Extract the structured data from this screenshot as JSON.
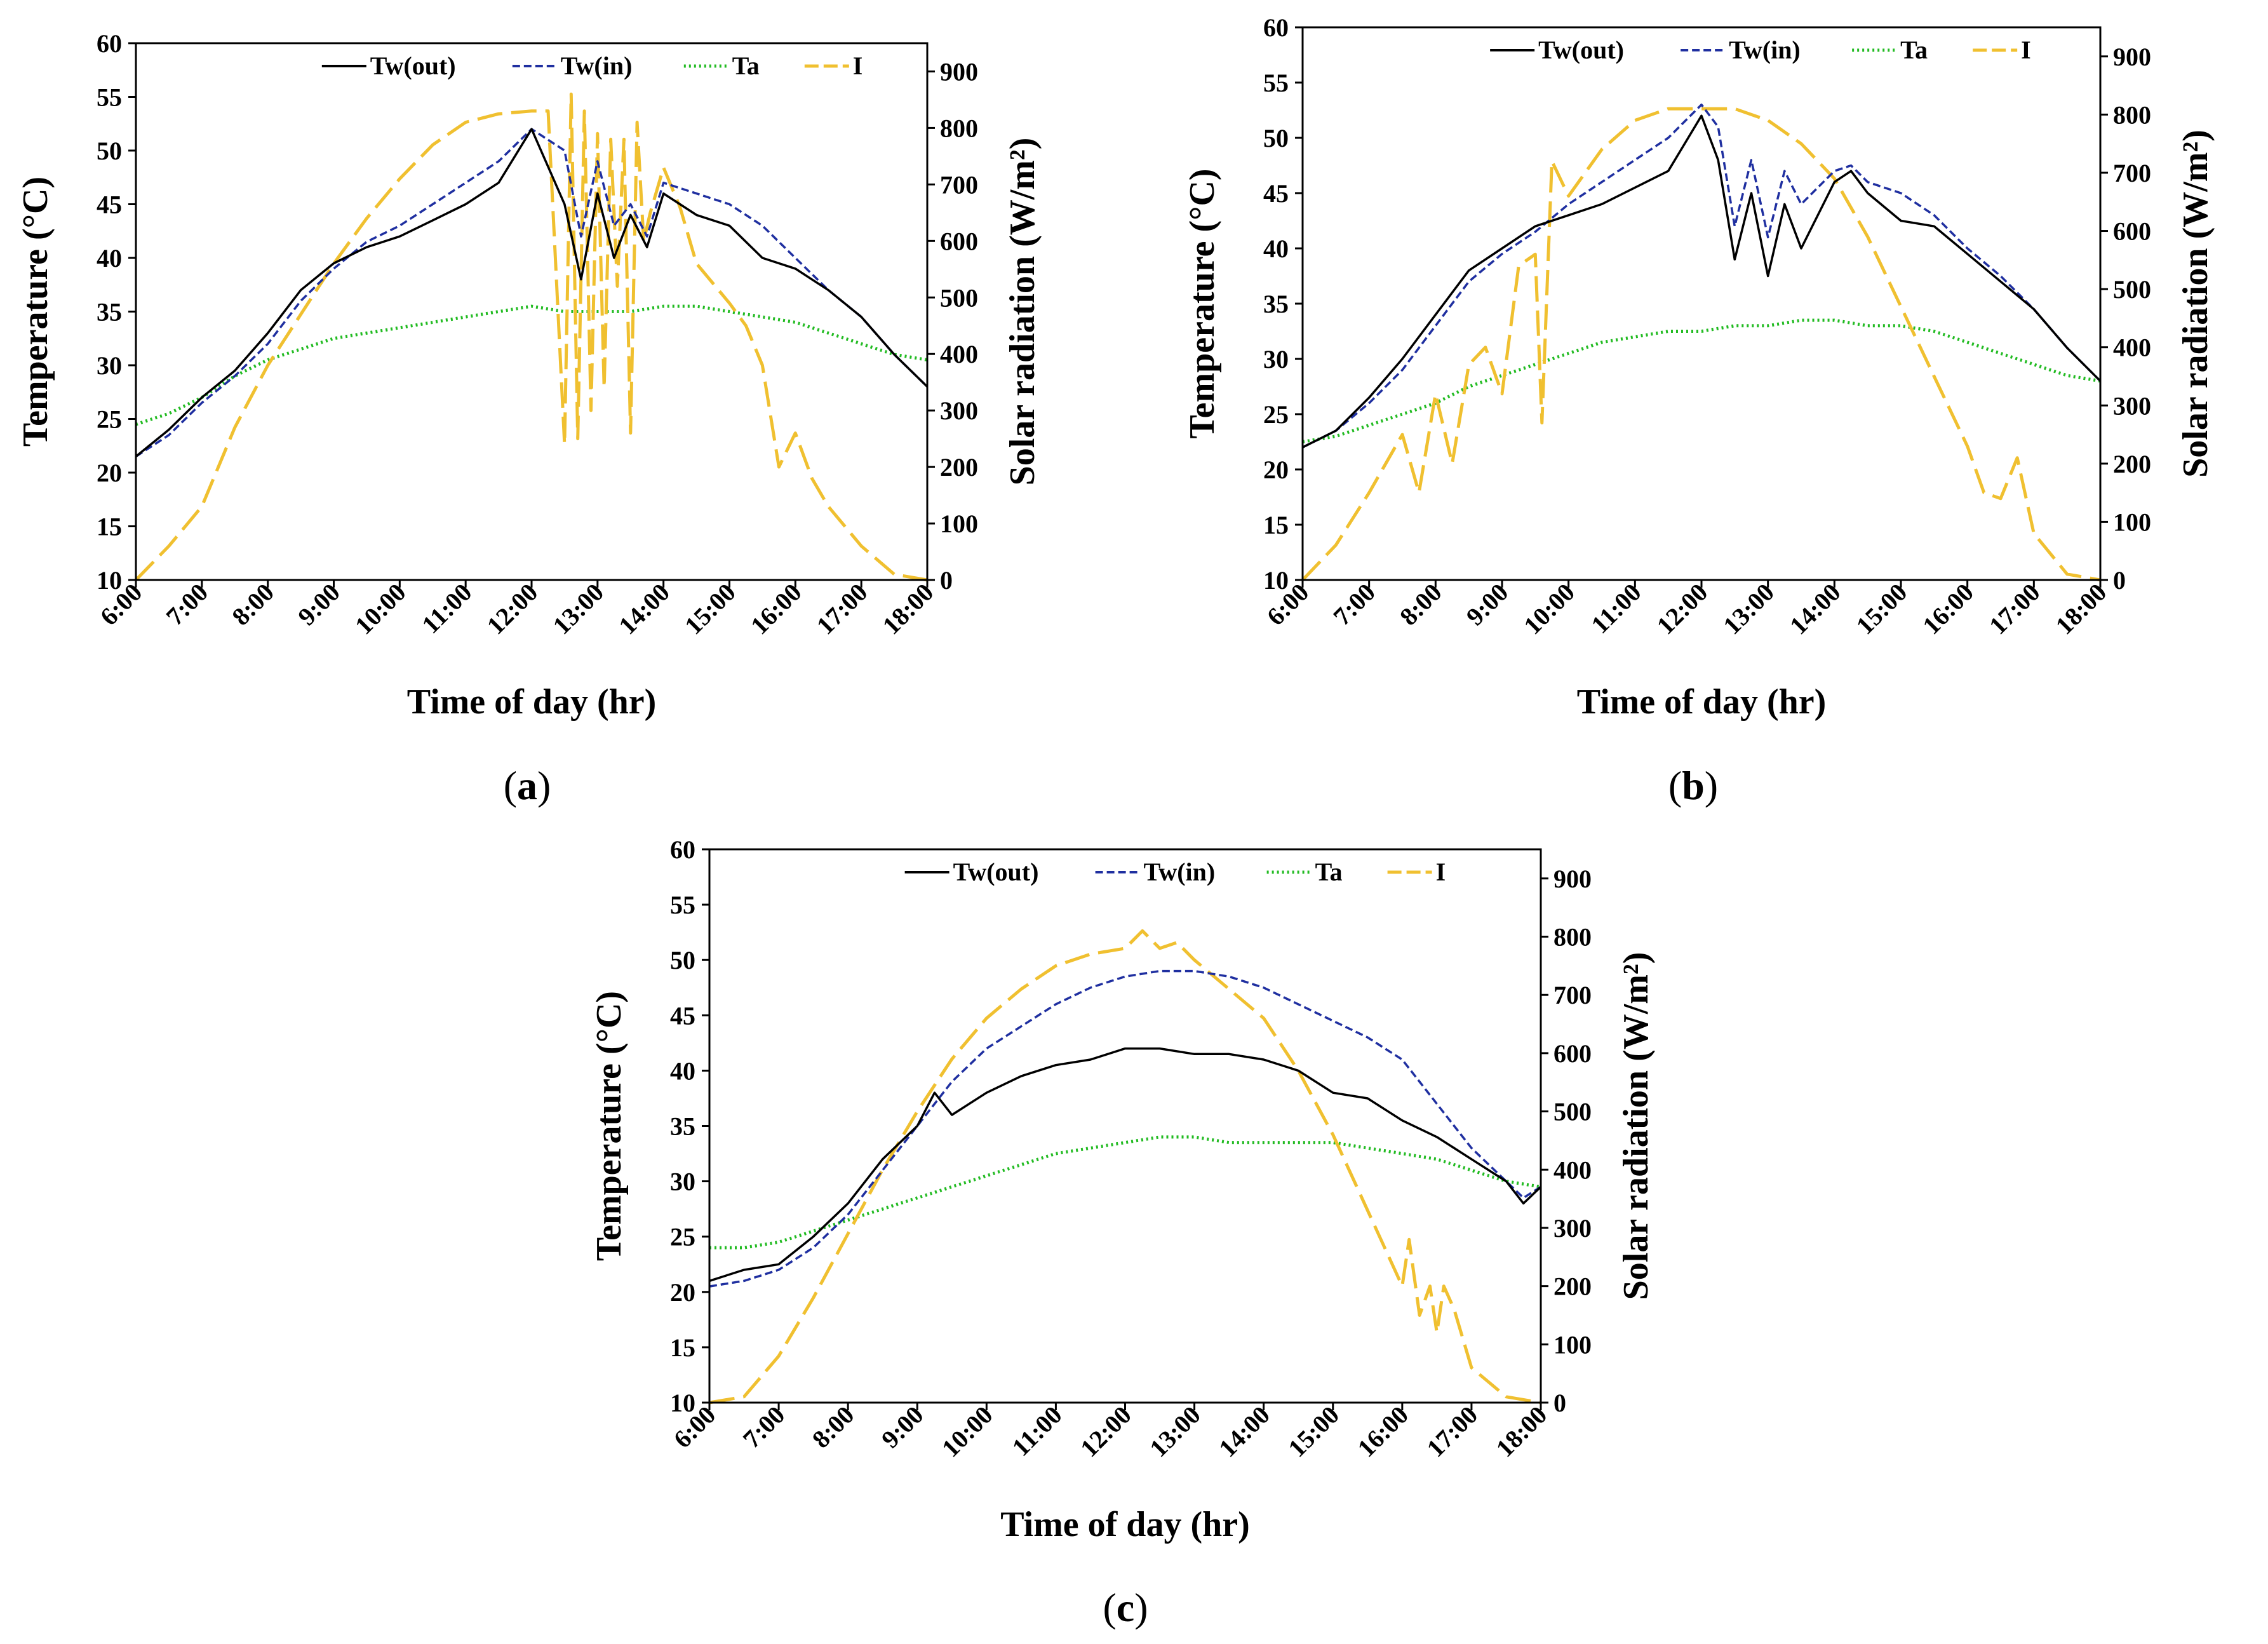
{
  "figure": {
    "panel_labels": [
      "a",
      "b",
      "c"
    ]
  },
  "colors": {
    "tw_out": "#000000",
    "tw_in": "#1f2fa0",
    "ta": "#22bb22",
    "I": "#f0c030"
  },
  "chart_data": [
    {
      "panel": "a",
      "type": "line",
      "xlabel": "Time of day (hr)",
      "ylabel": "Temperature (°C)",
      "y2label": "Solar radiation (W/m²)",
      "x_ticks": [
        "6:00",
        "7:00",
        "8:00",
        "9:00",
        "10:00",
        "11:00",
        "12:00",
        "13:00",
        "14:00",
        "15:00",
        "16:00",
        "17:00",
        "18:00"
      ],
      "ylim": [
        10,
        60
      ],
      "y_ticks": [
        10,
        15,
        20,
        25,
        30,
        35,
        40,
        45,
        50,
        55,
        60
      ],
      "y2lim": [
        0,
        950
      ],
      "y2_ticks": [
        0,
        100,
        200,
        300,
        400,
        500,
        600,
        700,
        800,
        900
      ],
      "legend": [
        "Tw(out)",
        "Tw(in)",
        "Ta",
        "I"
      ],
      "series": [
        {
          "key": "tw_out",
          "name": "Tw(out)",
          "axis": "left",
          "dash": "",
          "x": [
            6,
            6.5,
            7,
            7.5,
            8,
            8.5,
            9,
            9.5,
            10,
            10.5,
            11,
            11.5,
            12,
            12.5,
            12.75,
            13,
            13.25,
            13.5,
            13.75,
            14,
            14.5,
            15,
            15.5,
            16,
            16.5,
            17,
            17.5,
            18
          ],
          "y": [
            21.5,
            24,
            27,
            29.5,
            33,
            37,
            39.5,
            41,
            42,
            43.5,
            45,
            47,
            52,
            45,
            38,
            46,
            40,
            44,
            41,
            46,
            44,
            43,
            40,
            39,
            37,
            34.5,
            31,
            28
          ]
        },
        {
          "key": "tw_in",
          "name": "Tw(in)",
          "axis": "left",
          "dash": "12,6",
          "x": [
            6,
            6.5,
            7,
            7.5,
            8,
            8.5,
            9,
            9.5,
            10,
            10.5,
            11,
            11.5,
            12,
            12.5,
            12.75,
            13,
            13.25,
            13.5,
            13.75,
            14,
            14.5,
            15,
            15.5,
            16,
            16.5,
            17,
            17.5,
            18
          ],
          "y": [
            21.5,
            23.5,
            26.5,
            29,
            32,
            36,
            39,
            41.5,
            43,
            45,
            47,
            49,
            52,
            50,
            42,
            49,
            43,
            45,
            42,
            47,
            46,
            45,
            43,
            40,
            37,
            34.5,
            31,
            28
          ]
        },
        {
          "key": "ta",
          "name": "Ta",
          "axis": "left",
          "dash": "3,5",
          "x": [
            6,
            6.5,
            7,
            7.5,
            8,
            8.5,
            9,
            9.5,
            10,
            10.5,
            11,
            11.5,
            12,
            12.5,
            13,
            13.5,
            14,
            14.5,
            15,
            15.5,
            16,
            16.5,
            17,
            17.5,
            18
          ],
          "y": [
            24.5,
            25.5,
            27,
            29,
            30.5,
            31.5,
            32.5,
            33,
            33.5,
            34,
            34.5,
            35,
            35.5,
            35,
            35,
            35,
            35.5,
            35.5,
            35,
            34.5,
            34,
            33,
            32,
            31,
            30.5
          ]
        },
        {
          "key": "I",
          "name": "I",
          "axis": "right",
          "dash": "40,14",
          "x": [
            6,
            6.5,
            7,
            7.5,
            8,
            8.5,
            9,
            9.5,
            10,
            10.5,
            11,
            11.5,
            12,
            12.25,
            12.5,
            12.6,
            12.7,
            12.8,
            12.9,
            13,
            13.1,
            13.2,
            13.3,
            13.4,
            13.5,
            13.6,
            13.7,
            13.8,
            14,
            14.25,
            14.5,
            15,
            15.25,
            15.5,
            15.75,
            16,
            16.25,
            16.5,
            17,
            17.5,
            18
          ],
          "y": [
            0,
            60,
            130,
            270,
            380,
            470,
            560,
            640,
            710,
            770,
            810,
            825,
            830,
            830,
            240,
            860,
            250,
            830,
            300,
            790,
            340,
            780,
            520,
            780,
            260,
            810,
            600,
            650,
            730,
            660,
            560,
            490,
            450,
            380,
            200,
            260,
            180,
            130,
            60,
            10,
            0
          ]
        }
      ]
    },
    {
      "panel": "b",
      "type": "line",
      "xlabel": "Time of day (hr)",
      "ylabel": "Temperature (°C)",
      "y2label": "Solar radiation (W/m²)",
      "x_ticks": [
        "6:00",
        "7:00",
        "8:00",
        "9:00",
        "10:00",
        "11:00",
        "12:00",
        "13:00",
        "14:00",
        "15:00",
        "16:00",
        "17:00",
        "18:00"
      ],
      "ylim": [
        10,
        60
      ],
      "y_ticks": [
        10,
        15,
        20,
        25,
        30,
        35,
        40,
        45,
        50,
        55,
        60
      ],
      "y2lim": [
        0,
        950
      ],
      "y2_ticks": [
        0,
        100,
        200,
        300,
        400,
        500,
        600,
        700,
        800,
        900
      ],
      "legend": [
        "Tw(out)",
        "Tw(in)",
        "Ta",
        "I"
      ],
      "series": [
        {
          "key": "tw_out",
          "name": "Tw(out)",
          "axis": "left",
          "dash": "",
          "x": [
            6,
            6.5,
            7,
            7.5,
            8,
            8.5,
            9,
            9.5,
            10,
            10.5,
            11,
            11.5,
            12,
            12.25,
            12.5,
            12.75,
            13,
            13.25,
            13.5,
            14,
            14.25,
            14.5,
            15,
            15.5,
            16,
            16.5,
            17,
            17.5,
            18
          ],
          "y": [
            22,
            23.5,
            26.5,
            30,
            34,
            38,
            40,
            42,
            43,
            44,
            45.5,
            47,
            52,
            48,
            39,
            45,
            37.5,
            44,
            40,
            46,
            47,
            45,
            42.5,
            42,
            39.5,
            37,
            34.5,
            31,
            28
          ]
        },
        {
          "key": "tw_in",
          "name": "Tw(in)",
          "axis": "left",
          "dash": "12,6",
          "x": [
            6,
            6.5,
            7,
            7.5,
            8,
            8.5,
            9,
            9.5,
            10,
            10.5,
            11,
            11.5,
            12,
            12.25,
            12.5,
            12.75,
            13,
            13.25,
            13.5,
            14,
            14.25,
            14.5,
            15,
            15.5,
            16,
            16.5,
            17,
            17.5,
            18
          ],
          "y": [
            22,
            23.5,
            26,
            29,
            33,
            37,
            39.5,
            41.5,
            44,
            46,
            48,
            50,
            53,
            51,
            42,
            48,
            41,
            47,
            44,
            47,
            47.5,
            46,
            45,
            43,
            40,
            37.5,
            34.5,
            31,
            28
          ]
        },
        {
          "key": "ta",
          "name": "Ta",
          "axis": "left",
          "dash": "3,5",
          "x": [
            6,
            6.5,
            7,
            7.5,
            8,
            8.5,
            9,
            9.5,
            10,
            10.5,
            11,
            11.5,
            12,
            12.5,
            13,
            13.5,
            14,
            14.5,
            15,
            15.5,
            16,
            16.5,
            17,
            17.5,
            18
          ],
          "y": [
            22.5,
            23,
            24,
            25,
            26,
            27.5,
            28.5,
            29.5,
            30.5,
            31.5,
            32,
            32.5,
            32.5,
            33,
            33,
            33.5,
            33.5,
            33,
            33,
            32.5,
            31.5,
            30.5,
            29.5,
            28.5,
            28
          ]
        },
        {
          "key": "I",
          "name": "I",
          "axis": "right",
          "dash": "40,14",
          "x": [
            6,
            6.5,
            7,
            7.5,
            7.75,
            8,
            8.25,
            8.5,
            8.75,
            9,
            9.25,
            9.5,
            9.6,
            9.75,
            10,
            10.5,
            11,
            11.5,
            12,
            12.5,
            13,
            13.5,
            14,
            14.5,
            15,
            15.5,
            16,
            16.25,
            16.5,
            16.75,
            17,
            17.5,
            18
          ],
          "y": [
            0,
            60,
            150,
            250,
            150,
            320,
            200,
            370,
            400,
            320,
            540,
            560,
            270,
            720,
            660,
            740,
            790,
            810,
            810,
            810,
            790,
            750,
            690,
            590,
            470,
            350,
            230,
            150,
            140,
            210,
            80,
            10,
            0
          ]
        }
      ]
    },
    {
      "panel": "c",
      "type": "line",
      "xlabel": "Time of day (hr)",
      "ylabel": "Temperature (°C)",
      "y2label": "Solar radiation (W/m²)",
      "x_ticks": [
        "6:00",
        "7:00",
        "8:00",
        "9:00",
        "10:00",
        "11:00",
        "12:00",
        "13:00",
        "14:00",
        "15:00",
        "16:00",
        "17:00",
        "18:00"
      ],
      "ylim": [
        10,
        60
      ],
      "y_ticks": [
        10,
        15,
        20,
        25,
        30,
        35,
        40,
        45,
        50,
        55,
        60
      ],
      "y2lim": [
        0,
        950
      ],
      "y2_ticks": [
        0,
        100,
        200,
        300,
        400,
        500,
        600,
        700,
        800,
        900
      ],
      "legend": [
        "Tw(out)",
        "Tw(in)",
        "Ta",
        "I"
      ],
      "series": [
        {
          "key": "tw_out",
          "name": "Tw(out)",
          "axis": "left",
          "dash": "",
          "x": [
            6,
            6.5,
            7,
            7.5,
            8,
            8.5,
            9,
            9.25,
            9.5,
            10,
            10.5,
            11,
            11.5,
            12,
            12.5,
            13,
            13.5,
            14,
            14.5,
            15,
            15.5,
            16,
            16.5,
            17,
            17.5,
            17.75,
            18
          ],
          "y": [
            21,
            22,
            22.5,
            25,
            28,
            32,
            35,
            38,
            36,
            38,
            39.5,
            40.5,
            41,
            42,
            42,
            41.5,
            41.5,
            41,
            40,
            38,
            37.5,
            35.5,
            34,
            32,
            30,
            28,
            29.5
          ]
        },
        {
          "key": "tw_in",
          "name": "Tw(in)",
          "axis": "left",
          "dash": "12,6",
          "x": [
            6,
            6.5,
            7,
            7.5,
            8,
            8.5,
            9,
            9.5,
            10,
            10.5,
            11,
            11.5,
            12,
            12.5,
            13,
            13.5,
            14,
            14.5,
            15,
            15.5,
            16,
            16.5,
            17,
            17.5,
            17.75,
            18
          ],
          "y": [
            20.5,
            21,
            22,
            24,
            27,
            31,
            35,
            39,
            42,
            44,
            46,
            47.5,
            48.5,
            49,
            49,
            48.5,
            47.5,
            46,
            44.5,
            43,
            41,
            37,
            33,
            30,
            28.5,
            29.5
          ]
        },
        {
          "key": "ta",
          "name": "Ta",
          "axis": "left",
          "dash": "3,5",
          "x": [
            6,
            6.5,
            7,
            7.5,
            8,
            8.5,
            9,
            9.5,
            10,
            10.5,
            11,
            11.5,
            12,
            12.5,
            13,
            13.5,
            14,
            14.5,
            15,
            15.5,
            16,
            16.5,
            17,
            17.5,
            18
          ],
          "y": [
            24,
            24,
            24.5,
            25.5,
            26.5,
            27.5,
            28.5,
            29.5,
            30.5,
            31.5,
            32.5,
            33,
            33.5,
            34,
            34,
            33.5,
            33.5,
            33.5,
            33.5,
            33,
            32.5,
            32,
            31,
            30,
            29.5
          ]
        },
        {
          "key": "I",
          "name": "I",
          "axis": "right",
          "dash": "40,14",
          "x": [
            6,
            6.5,
            7,
            7.5,
            8,
            8.5,
            9,
            9.5,
            10,
            10.5,
            11,
            11.5,
            12,
            12.25,
            12.5,
            12.75,
            13,
            13.5,
            14,
            14.5,
            15,
            15.5,
            16,
            16.1,
            16.25,
            16.4,
            16.5,
            16.6,
            16.75,
            17,
            17.5,
            18
          ],
          "y": [
            0,
            10,
            80,
            180,
            290,
            400,
            500,
            590,
            660,
            710,
            750,
            770,
            780,
            810,
            780,
            790,
            760,
            710,
            660,
            570,
            460,
            330,
            200,
            280,
            150,
            200,
            120,
            200,
            160,
            60,
            10,
            0
          ]
        }
      ]
    }
  ]
}
